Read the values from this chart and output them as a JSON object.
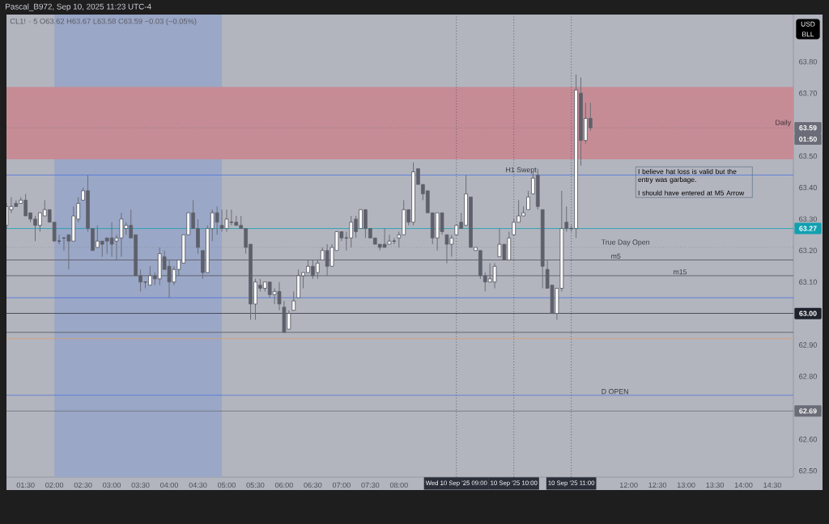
{
  "chart_data": {
    "type": "candlestick",
    "title": "Pascal_B972, Sep 10, 2025 11:23 UTC-4",
    "subtitle": "CL1! · 5  O63.62  H63.67  L63.58  C63.59  −0.03 (−0.05%)",
    "ylabel": "USD BLL",
    "x": [
      "2025-09-10T01:10",
      "2025-09-10T01:15",
      "2025-09-10T01:20",
      "2025-09-10T01:25",
      "2025-09-10T01:30",
      "2025-09-10T01:35",
      "2025-09-10T01:40",
      "2025-09-10T01:45",
      "2025-09-10T01:50",
      "2025-09-10T01:55",
      "2025-09-10T02:00",
      "2025-09-10T02:05",
      "2025-09-10T02:10",
      "2025-09-10T02:15",
      "2025-09-10T02:20",
      "2025-09-10T02:25",
      "2025-09-10T02:30",
      "2025-09-10T02:35",
      "2025-09-10T02:40",
      "2025-09-10T02:45",
      "2025-09-10T02:50",
      "2025-09-10T02:55",
      "2025-09-10T03:00",
      "2025-09-10T03:05",
      "2025-09-10T03:10",
      "2025-09-10T03:15",
      "2025-09-10T03:20",
      "2025-09-10T03:25",
      "2025-09-10T03:30",
      "2025-09-10T03:35",
      "2025-09-10T03:40",
      "2025-09-10T03:45",
      "2025-09-10T03:50",
      "2025-09-10T03:55",
      "2025-09-10T04:00",
      "2025-09-10T04:05",
      "2025-09-10T04:10",
      "2025-09-10T04:15",
      "2025-09-10T04:20",
      "2025-09-10T04:25",
      "2025-09-10T04:30",
      "2025-09-10T04:35",
      "2025-09-10T04:40",
      "2025-09-10T04:45",
      "2025-09-10T04:50",
      "2025-09-10T04:55",
      "2025-09-10T05:00",
      "2025-09-10T05:05",
      "2025-09-10T05:10",
      "2025-09-10T05:15",
      "2025-09-10T05:20",
      "2025-09-10T05:25",
      "2025-09-10T05:30",
      "2025-09-10T05:35",
      "2025-09-10T05:40",
      "2025-09-10T05:45",
      "2025-09-10T05:50",
      "2025-09-10T05:55",
      "2025-09-10T06:00",
      "2025-09-10T06:05",
      "2025-09-10T06:10",
      "2025-09-10T06:15",
      "2025-09-10T06:20",
      "2025-09-10T06:25",
      "2025-09-10T06:30",
      "2025-09-10T06:35",
      "2025-09-10T06:40",
      "2025-09-10T06:45",
      "2025-09-10T06:50",
      "2025-09-10T06:55",
      "2025-09-10T07:00",
      "2025-09-10T07:05",
      "2025-09-10T07:10",
      "2025-09-10T07:15",
      "2025-09-10T07:20",
      "2025-09-10T07:25",
      "2025-09-10T07:30",
      "2025-09-10T07:35",
      "2025-09-10T07:40",
      "2025-09-10T07:45",
      "2025-09-10T07:50",
      "2025-09-10T07:55",
      "2025-09-10T08:00",
      "2025-09-10T08:05",
      "2025-09-10T08:10",
      "2025-09-10T08:15",
      "2025-09-10T08:20",
      "2025-09-10T08:25",
      "2025-09-10T08:30",
      "2025-09-10T08:35",
      "2025-09-10T08:40",
      "2025-09-10T08:45",
      "2025-09-10T08:50",
      "2025-09-10T08:55",
      "2025-09-10T09:00",
      "2025-09-10T09:05",
      "2025-09-10T09:10",
      "2025-09-10T09:15",
      "2025-09-10T09:20",
      "2025-09-10T09:25",
      "2025-09-10T09:30",
      "2025-09-10T09:35",
      "2025-09-10T09:40",
      "2025-09-10T09:45",
      "2025-09-10T09:50",
      "2025-09-10T09:55",
      "2025-09-10T10:00",
      "2025-09-10T10:05",
      "2025-09-10T10:10",
      "2025-09-10T10:15",
      "2025-09-10T10:20",
      "2025-09-10T10:25",
      "2025-09-10T10:30",
      "2025-09-10T10:35",
      "2025-09-10T10:40",
      "2025-09-10T10:45",
      "2025-09-10T10:50",
      "2025-09-10T10:55",
      "2025-09-10T11:00",
      "2025-09-10T11:05",
      "2025-09-10T11:10",
      "2025-09-10T11:15",
      "2025-09-10T11:20"
    ],
    "ohlc": [
      [
        63.28,
        63.35,
        63.27,
        63.34
      ],
      [
        63.33,
        63.37,
        63.32,
        63.34
      ],
      [
        63.35,
        63.36,
        63.34,
        63.34
      ],
      [
        63.35,
        63.37,
        63.35,
        63.36
      ],
      [
        63.36,
        63.38,
        63.31,
        63.31
      ],
      [
        63.32,
        63.32,
        63.29,
        63.3
      ],
      [
        63.3,
        63.31,
        63.23,
        63.28
      ],
      [
        63.28,
        63.32,
        63.26,
        63.32
      ],
      [
        63.31,
        63.36,
        63.31,
        63.33
      ],
      [
        63.33,
        63.33,
        63.29,
        63.29
      ],
      [
        63.29,
        63.29,
        63.23,
        63.23
      ],
      [
        63.23,
        63.25,
        63.22,
        63.23
      ],
      [
        63.24,
        63.24,
        63.2,
        63.24
      ],
      [
        63.25,
        63.25,
        63.14,
        63.23
      ],
      [
        63.23,
        63.34,
        63.23,
        63.31
      ],
      [
        63.3,
        63.37,
        63.29,
        63.35
      ],
      [
        63.36,
        63.4,
        63.36,
        63.39
      ],
      [
        63.39,
        63.44,
        63.26,
        63.27
      ],
      [
        63.27,
        63.27,
        63.2,
        63.2
      ],
      [
        63.21,
        63.28,
        63.21,
        63.23
      ],
      [
        63.23,
        63.23,
        63.18,
        63.22
      ],
      [
        63.24,
        63.24,
        63.19,
        63.23
      ],
      [
        63.24,
        63.29,
        63.18,
        63.22
      ],
      [
        63.23,
        63.25,
        63.17,
        63.24
      ],
      [
        63.24,
        63.32,
        63.18,
        63.3
      ],
      [
        63.27,
        63.29,
        63.25,
        63.28
      ],
      [
        63.28,
        63.33,
        63.24,
        63.24
      ],
      [
        63.25,
        63.25,
        63.12,
        63.12
      ],
      [
        63.12,
        63.14,
        63.07,
        63.1
      ],
      [
        63.1,
        63.1,
        63.08,
        63.1
      ],
      [
        63.09,
        63.15,
        63.09,
        63.12
      ],
      [
        63.12,
        63.13,
        63.09,
        63.11
      ],
      [
        63.11,
        63.21,
        63.09,
        63.19
      ],
      [
        63.18,
        63.2,
        63.14,
        63.14
      ],
      [
        63.15,
        63.17,
        63.05,
        63.1
      ],
      [
        63.1,
        63.15,
        63.09,
        63.14
      ],
      [
        63.14,
        63.17,
        63.12,
        63.17
      ],
      [
        63.16,
        63.25,
        63.16,
        63.25
      ],
      [
        63.25,
        63.32,
        63.25,
        63.32
      ],
      [
        63.32,
        63.36,
        63.27,
        63.27
      ],
      [
        63.27,
        63.3,
        63.19,
        63.21
      ],
      [
        63.2,
        63.2,
        63.11,
        63.13
      ],
      [
        63.13,
        63.28,
        63.13,
        63.27
      ],
      [
        63.27,
        63.33,
        63.23,
        63.32
      ],
      [
        63.32,
        63.34,
        63.25,
        63.29
      ],
      [
        63.28,
        63.33,
        63.26,
        63.27
      ],
      [
        63.27,
        63.33,
        63.26,
        63.3
      ],
      [
        63.29,
        63.33,
        63.28,
        63.29
      ],
      [
        63.29,
        63.31,
        63.28,
        63.28
      ],
      [
        63.28,
        63.31,
        63.27,
        63.27
      ],
      [
        63.27,
        63.27,
        63.19,
        63.21
      ],
      [
        63.22,
        63.22,
        62.98,
        63.03
      ],
      [
        63.03,
        63.11,
        62.98,
        63.1
      ],
      [
        63.09,
        63.11,
        63.07,
        63.08
      ],
      [
        63.08,
        63.1,
        63.07,
        63.1
      ],
      [
        63.1,
        63.1,
        63.05,
        63.06
      ],
      [
        63.06,
        63.08,
        63.03,
        63.07
      ],
      [
        63.07,
        63.1,
        63.01,
        63.03
      ],
      [
        63.02,
        63.04,
        62.94,
        62.94
      ],
      [
        62.95,
        63.01,
        62.95,
        63.0
      ],
      [
        63.01,
        63.07,
        63.01,
        63.04
      ],
      [
        63.05,
        63.14,
        63.05,
        63.12
      ],
      [
        63.12,
        63.13,
        63.08,
        63.13
      ],
      [
        63.13,
        63.17,
        63.13,
        63.15
      ],
      [
        63.15,
        63.17,
        63.11,
        63.12
      ],
      [
        63.13,
        63.17,
        63.11,
        63.16
      ],
      [
        63.17,
        63.21,
        63.17,
        63.2
      ],
      [
        63.2,
        63.22,
        63.12,
        63.15
      ],
      [
        63.15,
        63.22,
        63.15,
        63.21
      ],
      [
        63.2,
        63.26,
        63.2,
        63.26
      ],
      [
        63.26,
        63.26,
        63.23,
        63.24
      ],
      [
        63.24,
        63.26,
        63.2,
        63.24
      ],
      [
        63.24,
        63.31,
        63.21,
        63.29
      ],
      [
        63.3,
        63.31,
        63.24,
        63.26
      ],
      [
        63.27,
        63.33,
        63.27,
        63.33
      ],
      [
        63.33,
        63.33,
        63.24,
        63.27
      ],
      [
        63.27,
        63.27,
        63.24,
        63.24
      ],
      [
        63.24,
        63.24,
        63.22,
        63.22
      ],
      [
        63.22,
        63.22,
        63.2,
        63.21
      ],
      [
        63.22,
        63.27,
        63.21,
        63.21
      ],
      [
        63.22,
        63.25,
        63.22,
        63.23
      ],
      [
        63.23,
        63.24,
        63.22,
        63.23
      ],
      [
        63.24,
        63.26,
        63.21,
        63.25
      ],
      [
        63.25,
        63.36,
        63.25,
        63.33
      ],
      [
        63.33,
        63.33,
        63.28,
        63.29
      ],
      [
        63.29,
        63.48,
        63.28,
        63.45
      ],
      [
        63.46,
        63.46,
        63.41,
        63.41
      ],
      [
        63.41,
        63.41,
        63.36,
        63.38
      ],
      [
        63.39,
        63.39,
        63.32,
        63.32
      ],
      [
        63.32,
        63.32,
        63.22,
        63.24
      ],
      [
        63.24,
        63.32,
        63.2,
        63.32
      ],
      [
        63.32,
        63.32,
        63.25,
        63.26
      ],
      [
        63.25,
        63.25,
        63.16,
        63.22
      ],
      [
        63.22,
        63.25,
        63.18,
        63.24
      ],
      [
        63.25,
        63.28,
        63.25,
        63.28
      ],
      [
        63.29,
        63.32,
        63.27,
        63.27
      ],
      [
        63.28,
        63.44,
        63.28,
        63.38
      ],
      [
        63.37,
        63.37,
        63.21,
        63.21
      ],
      [
        63.2,
        63.21,
        63.2,
        63.21
      ],
      [
        63.2,
        63.2,
        63.11,
        63.12
      ],
      [
        63.12,
        63.13,
        63.07,
        63.1
      ],
      [
        63.1,
        63.16,
        63.1,
        63.11
      ],
      [
        63.1,
        63.16,
        63.08,
        63.15
      ],
      [
        63.18,
        63.27,
        63.18,
        63.22
      ],
      [
        63.22,
        63.22,
        63.17,
        63.17
      ],
      [
        63.17,
        63.26,
        63.17,
        63.24
      ],
      [
        63.25,
        63.3,
        63.25,
        63.29
      ],
      [
        63.29,
        63.36,
        63.29,
        63.31
      ],
      [
        63.31,
        63.34,
        63.31,
        63.32
      ],
      [
        63.33,
        63.39,
        63.33,
        63.37
      ],
      [
        63.38,
        63.45,
        63.38,
        63.43
      ],
      [
        63.44,
        63.46,
        63.33,
        63.34
      ],
      [
        63.33,
        63.33,
        63.08,
        63.15
      ],
      [
        63.14,
        63.17,
        63.08,
        63.08
      ],
      [
        63.09,
        63.09,
        63.0,
        63.0
      ],
      [
        63.0,
        63.08,
        62.98,
        63.08
      ],
      [
        63.08,
        63.39,
        63.07,
        63.27
      ],
      [
        63.29,
        63.34,
        63.26,
        63.27
      ],
      [
        63.27,
        63.28,
        63.26,
        63.27
      ],
      [
        63.27,
        63.76,
        63.24,
        63.71
      ],
      [
        63.7,
        63.75,
        63.47,
        63.55
      ],
      [
        63.55,
        63.67,
        63.54,
        63.62
      ],
      [
        63.62,
        63.67,
        63.58,
        63.59
      ]
    ],
    "xlim": [
      "2025-09-10T01:10",
      "2025-09-10T14:52"
    ],
    "ylim": [
      62.48,
      63.95
    ],
    "xticks": [
      {
        "value": "2025-09-10T01:30",
        "label": "01:30"
      },
      {
        "value": "2025-09-10T02:00",
        "label": "02:00"
      },
      {
        "value": "2025-09-10T02:30",
        "label": "02:30"
      },
      {
        "value": "2025-09-10T03:00",
        "label": "03:00"
      },
      {
        "value": "2025-09-10T03:30",
        "label": "03:30"
      },
      {
        "value": "2025-09-10T04:00",
        "label": "04:00"
      },
      {
        "value": "2025-09-10T04:30",
        "label": "04:30"
      },
      {
        "value": "2025-09-10T05:00",
        "label": "05:00"
      },
      {
        "value": "2025-09-10T05:30",
        "label": "05:30"
      },
      {
        "value": "2025-09-10T06:00",
        "label": "06:00"
      },
      {
        "value": "2025-09-10T06:30",
        "label": "06:30"
      },
      {
        "value": "2025-09-10T07:00",
        "label": "07:00"
      },
      {
        "value": "2025-09-10T07:30",
        "label": "07:30"
      },
      {
        "value": "2025-09-10T08:00",
        "label": "08:00"
      },
      {
        "value": "2025-09-10T12:00",
        "label": "12:00"
      },
      {
        "value": "2025-09-10T12:30",
        "label": "12:30"
      },
      {
        "value": "2025-09-10T13:00",
        "label": "13:00"
      },
      {
        "value": "2025-09-10T13:30",
        "label": "13:30"
      },
      {
        "value": "2025-09-10T14:00",
        "label": "14:00"
      },
      {
        "value": "2025-09-10T14:30",
        "label": "14:30"
      }
    ],
    "yticks": [
      {
        "value": 62.5,
        "label": "62.50"
      },
      {
        "value": 62.6,
        "label": "62.60"
      },
      {
        "value": 62.8,
        "label": "62.80"
      },
      {
        "value": 62.9,
        "label": "62.90"
      },
      {
        "value": 63.1,
        "label": "63.10"
      },
      {
        "value": 63.2,
        "label": "63.20"
      },
      {
        "value": 63.3,
        "label": "63.30"
      },
      {
        "value": 63.4,
        "label": "63.40"
      },
      {
        "value": 63.5,
        "label": "63.50"
      },
      {
        "value": 63.7,
        "label": "63.70"
      },
      {
        "value": 63.8,
        "label": "63.80"
      }
    ],
    "bands": [
      {
        "axis": "x",
        "from": "2025-09-10T02:00",
        "to": "2025-09-10T04:55",
        "color": "#9ba7c6"
      },
      {
        "axis": "y",
        "from": 63.49,
        "to": 63.72,
        "label": "Daily",
        "color": "#c68c96"
      }
    ],
    "ref_lines": [
      {
        "axis": "x",
        "value": "2025-09-10T09:00",
        "label": "Wed 10 Sep '25 09:00",
        "color": "#2a2e39",
        "line_style": "dotted"
      },
      {
        "axis": "x",
        "value": "2025-09-10T10:00",
        "label": "10 Sep '25 10:00",
        "color": "#2a2e39",
        "line_style": "dotted"
      },
      {
        "axis": "x",
        "value": "2025-09-10T11:00",
        "label": "10 Sep '25 11:00",
        "color": "#2a2e39",
        "line_style": "dotted"
      },
      {
        "axis": "y",
        "value": 63.59,
        "label": "63.59",
        "color": "#6a6d78",
        "line_style": "dotted"
      },
      {
        "axis": "y",
        "value": 63.27,
        "label": "63.27",
        "color": "#12a0b0"
      },
      {
        "axis": "y",
        "value": 63.0,
        "label": "63.00",
        "color": "#1e222d"
      },
      {
        "axis": "y",
        "value": 62.69,
        "label": "62.69",
        "color": "#6a6d78"
      },
      {
        "axis": "y",
        "value": 63.44,
        "color": "#4a72e0"
      },
      {
        "axis": "y",
        "value": 63.21,
        "color": "#6a6d78",
        "line_style": "dotted"
      },
      {
        "axis": "y",
        "value": 63.17,
        "color": "#50535e"
      },
      {
        "axis": "y",
        "value": 63.12,
        "color": "#50535e"
      },
      {
        "axis": "y",
        "value": 63.05,
        "color": "#4a72e0"
      },
      {
        "axis": "y",
        "value": 62.94,
        "color": "#50535e"
      },
      {
        "axis": "y",
        "value": 62.92,
        "color": "#d9a070"
      },
      {
        "axis": "y",
        "value": 62.74,
        "color": "#4a72e0"
      }
    ],
    "annotations": [
      "I believe hat loss is valid but the entry was garbage.",
      "I should have entered at M5 Arrow",
      {
        "text": "H1 Swept",
        "x": "2025-09-10T09:50",
        "y": 63.44
      },
      {
        "text": "True Day Open",
        "x": "2025-09-10T11:30",
        "y": 63.21
      },
      {
        "text": "m5",
        "x": "2025-09-10T11:40",
        "y": 63.17
      },
      {
        "text": "m15",
        "x": "2025-09-10T12:45",
        "y": 63.12
      },
      {
        "text": "D OPEN",
        "x": "2025-09-10T11:30",
        "y": 62.74
      },
      {
        "text": "01:50",
        "y": 63.59
      }
    ]
  }
}
